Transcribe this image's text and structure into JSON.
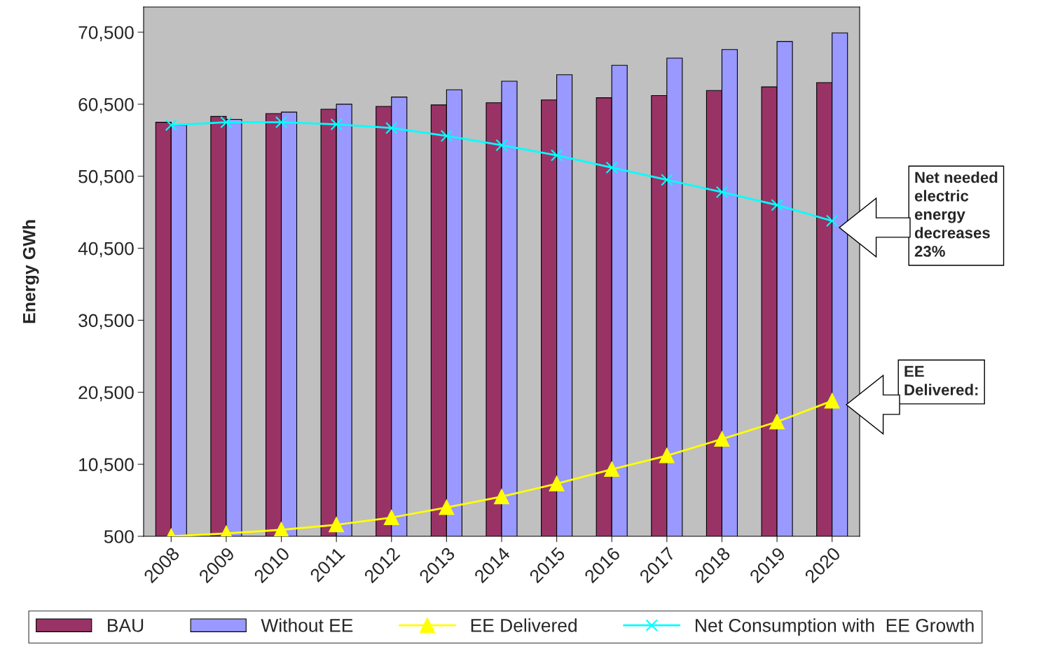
{
  "chart_data": {
    "type": "bar",
    "ylabel": "Energy GWh",
    "categories": [
      "2008",
      "2009",
      "2010",
      "2011",
      "2012",
      "2013",
      "2014",
      "2015",
      "2016",
      "2017",
      "2018",
      "2019",
      "2020"
    ],
    "series": [
      {
        "name": "BAU",
        "color": "#993366",
        "values": [
          58000,
          58800,
          59200,
          59800,
          60200,
          60400,
          60700,
          61100,
          61400,
          61700,
          62400,
          62900,
          63500
        ]
      },
      {
        "name": "Without EE",
        "color": "#9999ff",
        "values": [
          57600,
          58400,
          59400,
          60500,
          61500,
          62500,
          63700,
          64600,
          65900,
          66900,
          68100,
          69200,
          70400
        ]
      },
      {
        "name": "EE Delivered",
        "type": "line",
        "color": "#ffff00",
        "marker": "triangle",
        "values": [
          500,
          900,
          1400,
          2100,
          3100,
          4500,
          6000,
          7800,
          9800,
          11700,
          14000,
          16400,
          19300
        ]
      },
      {
        "name": "Net Consumption with  EE Growth",
        "type": "line",
        "color": "#00ffff",
        "marker": "cross",
        "values": [
          57600,
          58000,
          58000,
          57700,
          57200,
          56100,
          54800,
          53400,
          51700,
          50000,
          48300,
          46500,
          44300
        ]
      }
    ],
    "ylim": [
      500,
      74000
    ],
    "yticks": [
      {
        "value": 500,
        "label": "500"
      },
      {
        "value": 10500,
        "label": "10,500"
      },
      {
        "value": 20500,
        "label": "20,500"
      },
      {
        "value": 30500,
        "label": "30,500"
      },
      {
        "value": 40500,
        "label": "40,500"
      },
      {
        "value": 50500,
        "label": "50,500"
      },
      {
        "value": 60500,
        "label": "60,500"
      },
      {
        "value": 70500,
        "label": "70,500"
      }
    ],
    "annotations": [
      "Net needed\nelectric\nenergy\ndecreases\n23%",
      "EE\nDelivered:"
    ],
    "grid": false,
    "legend": "bottom"
  }
}
